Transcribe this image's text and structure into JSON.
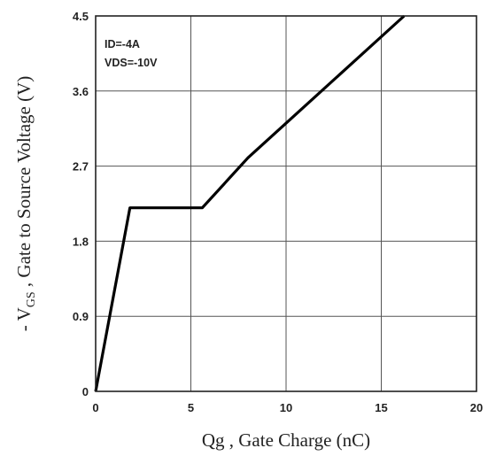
{
  "chart_data": {
    "type": "line",
    "xlabel": "Qg , Gate Charge (nC)",
    "ylabel_prefix": "- V",
    "ylabel_subscript": "GS",
    "ylabel_suffix": " , Gate to Source Voltage (V)",
    "xlim": [
      0,
      20
    ],
    "ylim": [
      0,
      4.5
    ],
    "x_ticks": [
      "0",
      "5",
      "10",
      "15",
      "20"
    ],
    "y_ticks": [
      "0",
      "0.9",
      "1.8",
      "2.7",
      "3.6",
      "4.5"
    ],
    "grid": true,
    "annotations": [
      "ID=-4A",
      "VDS=-10V"
    ],
    "series": [
      {
        "x": [
          0,
          1.8,
          5.6,
          8.0,
          16.2
        ],
        "y": [
          0,
          2.2,
          2.2,
          2.8,
          4.5
        ]
      }
    ]
  }
}
